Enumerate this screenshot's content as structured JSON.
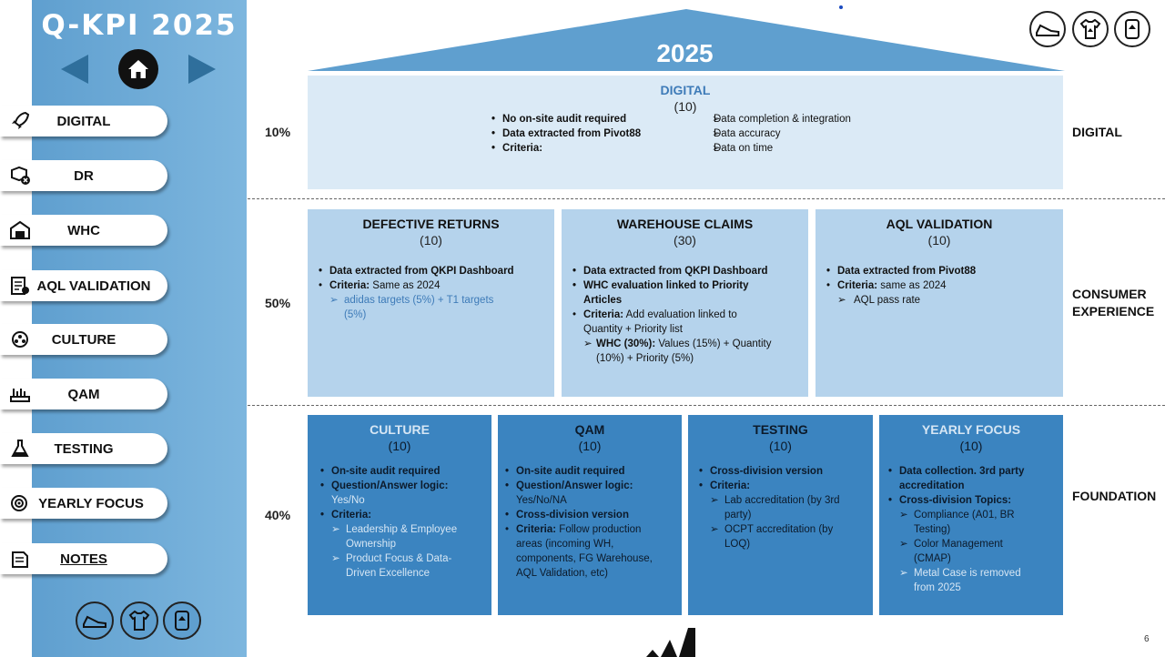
{
  "app": {
    "title": "Q-KPI 2025"
  },
  "sidebar": {
    "items": [
      {
        "label": "DIGITAL",
        "icon": "rocket-icon"
      },
      {
        "label": "DR",
        "icon": "box-return-icon"
      },
      {
        "label": "WHC",
        "icon": "warehouse-icon"
      },
      {
        "label": "AQL VALIDATION",
        "icon": "checklist-icon"
      },
      {
        "label": "CULTURE",
        "icon": "team-icon"
      },
      {
        "label": "QAM",
        "icon": "ruler-icon"
      },
      {
        "label": "TESTING",
        "icon": "flask-icon"
      },
      {
        "label": "YEARLY FOCUS",
        "icon": "target-icon"
      },
      {
        "label": "NOTES",
        "icon": "notes-icon"
      }
    ],
    "bottom_icons": [
      "shoe-icon",
      "shirt-icon",
      "equipment-icon"
    ]
  },
  "top_icons": [
    "shoe-icon",
    "shirt-icon",
    "equipment-icon"
  ],
  "roof": {
    "year": "2025"
  },
  "rows": [
    {
      "pct": "10%",
      "category": "DIGITAL"
    },
    {
      "pct": "50%",
      "category": "CONSUMER EXPERIENCE"
    },
    {
      "pct": "40%",
      "category": "FOUNDATION"
    }
  ],
  "digital_box": {
    "title": "DIGITAL",
    "score": "(10)",
    "left_bullets": [
      "No on-site audit required",
      "Data extracted from Pivot88",
      "Criteria:"
    ],
    "right_bullets": [
      "Data completion & integration",
      "Data accuracy",
      "Data on time"
    ]
  },
  "defective_returns": {
    "title": "DEFECTIVE RETURNS",
    "score": "(10)",
    "b1": "Data extracted from QKPI Dashboard",
    "b2_bold": "Criteria:",
    "b2_rest": " Same as 2024",
    "a1": "adidas targets (5%) + T1 targets",
    "a1_cont": "(5%)"
  },
  "warehouse_claims": {
    "title": "WAREHOUSE CLAIMS",
    "score": "(30)",
    "b1": "Data extracted from QKPI Dashboard",
    "b2": "WHC evaluation linked to Priority",
    "b2_cont": "Articles",
    "b3_bold": "Criteria:",
    "b3_rest": " Add evaluation linked to",
    "b3_cont": "Quantity + Priority list",
    "a1_bold": "WHC (30%):",
    "a1_rest": " Values (15%) + Quantity",
    "a1_cont": "(10%) + Priority (5%)"
  },
  "aql_validation": {
    "title": "AQL VALIDATION",
    "score": "(10)",
    "b1": "Data extracted from Pivot88",
    "b2_bold": "Criteria:",
    "b2_rest": " same as 2024",
    "a1": "AQL pass rate"
  },
  "culture": {
    "title": "CULTURE",
    "score": "(10)",
    "b1": "On-site audit required",
    "b2": "Question/Answer logic:",
    "b2_cont": "Yes/No",
    "b3": "Criteria:",
    "a1": "Leadership & Employee",
    "a1_cont": "Ownership",
    "a2": "Product Focus & Data-",
    "a2_cont": "Driven Excellence"
  },
  "qam": {
    "title": "QAM",
    "score": "(10)",
    "b1": "On-site audit required",
    "b2": "Question/Answer logic:",
    "b2_cont": "Yes/No/NA",
    "b3": "Cross-division version",
    "b4_bold": "Criteria:",
    "b4_rest": " Follow production",
    "b4_cont1": "areas (incoming WH,",
    "b4_cont2": "components, FG Warehouse,",
    "b4_cont3": "AQL Validation, etc)"
  },
  "testing": {
    "title": "TESTING",
    "score": "(10)",
    "b1": "Cross-division version",
    "b2": "Criteria:",
    "a1": "Lab accreditation (by 3rd",
    "a1_cont": "party)",
    "a2": "OCPT accreditation (by",
    "a2_cont": "LOQ)"
  },
  "yearly_focus": {
    "title": "YEARLY FOCUS",
    "score": "(10)",
    "b1": "Data collection. 3rd party",
    "b1_cont": "accreditation",
    "b2": "Cross-division Topics:",
    "a1": "Compliance (A01, BR",
    "a1_cont": "Testing)",
    "a2": "Color Management",
    "a2_cont": "(CMAP)",
    "a3": "Metal Case is removed",
    "a3_cont": "from 2025"
  },
  "footer": {
    "page_number": "6",
    "logo": "adidas-logo"
  },
  "colors": {
    "sidebar": "#6aa8d6",
    "roof": "#5f9fcf",
    "digital_box": "#dbeaf6",
    "consumer_box": "#b5d3ec",
    "foundation_box": "#3b84c0"
  }
}
